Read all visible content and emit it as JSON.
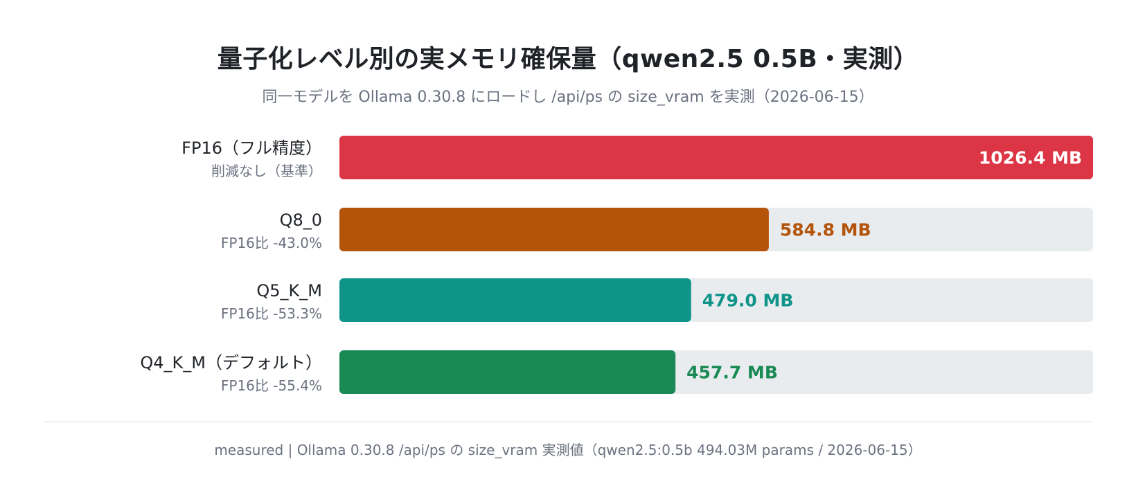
{
  "chart_data": {
    "type": "bar",
    "orientation": "horizontal",
    "title": "量子化レベル別の実メモリ確保量（qwen2.5 0.5B・実測）",
    "subtitle": "同一モデルを Ollama 0.30.8 にロードし /api/ps の size_vram を実測（2026-06-15）",
    "unit": "MB",
    "xlim": [
      0,
      1026.4
    ],
    "grid": false,
    "legend": "none",
    "categories": [
      "FP16（フル精度）",
      "Q8_0",
      "Q5_K_M",
      "Q4_K_M（デフォルト）"
    ],
    "sublabels": [
      "削減なし（基準）",
      "FP16比 -43.0%",
      "FP16比 -53.3%",
      "FP16比 -55.4%"
    ],
    "values": [
      1026.4,
      584.8,
      479.0,
      457.7
    ],
    "value_labels": [
      "1026.4 MB",
      "584.8 MB",
      "479.0 MB",
      "457.7 MB"
    ],
    "colors": [
      "#dc3545",
      "#b4530a",
      "#0e9488",
      "#1a8a55"
    ],
    "track_color": "#e9ecef",
    "footer": "measured | Ollama 0.30.8 /api/ps の size_vram 実測値（qwen2.5:0.5b 494.03M params / 2026-06-15）"
  }
}
